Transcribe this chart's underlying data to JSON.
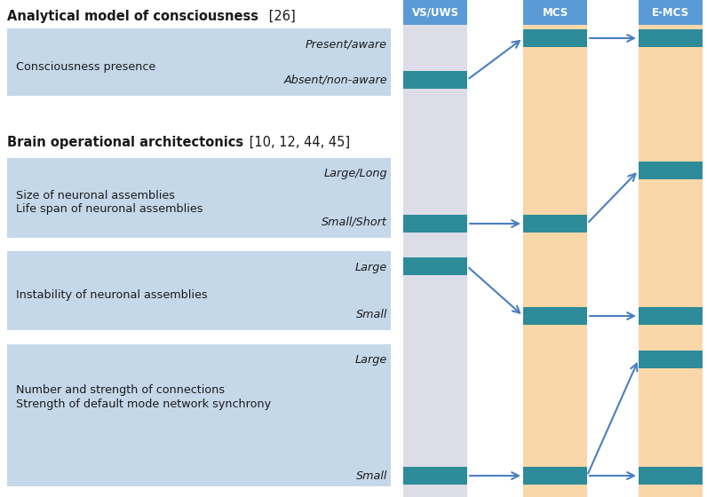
{
  "bg_color": "#ffffff",
  "header_bg": "#5b9bd5",
  "header_text_color": "#ffffff",
  "headers": [
    "VS/UWS",
    "MCS",
    "E-MCS"
  ],
  "col_bg_vs": "#dddde8",
  "col_bg_mcs": "#fad7a8",
  "col_bg_emcs": "#fad7a8",
  "bar_color": "#2e8b9a",
  "left_panel_bg": "#c5d8ea",
  "arrow_color": "#4a7fbf",
  "heading1_bold": "Analytical model of consciousness",
  "heading1_ref": " [26]",
  "heading2_bold": "Brain operational architectonics",
  "heading2_ref": " [10, 12, 44, 45]",
  "section1_label": "Consciousness presence",
  "section1_top_label": "Present/aware",
  "section1_bot_label": "Absent/non-aware",
  "section2_label1": "Size of neuronal assemblies",
  "section2_label2": "Life span of neuronal assemblies",
  "section2_top_label": "Large/Long",
  "section2_bot_label": "Small/Short",
  "section3_label": "Instability of neuronal assemblies",
  "section3_top_label": "Large",
  "section3_bot_label": "Small",
  "section4_label1": "Number and strength of connections",
  "section4_label2": "Strength of default mode network synchrony",
  "section4_top_label": "Large",
  "section4_bot_label": "Small"
}
